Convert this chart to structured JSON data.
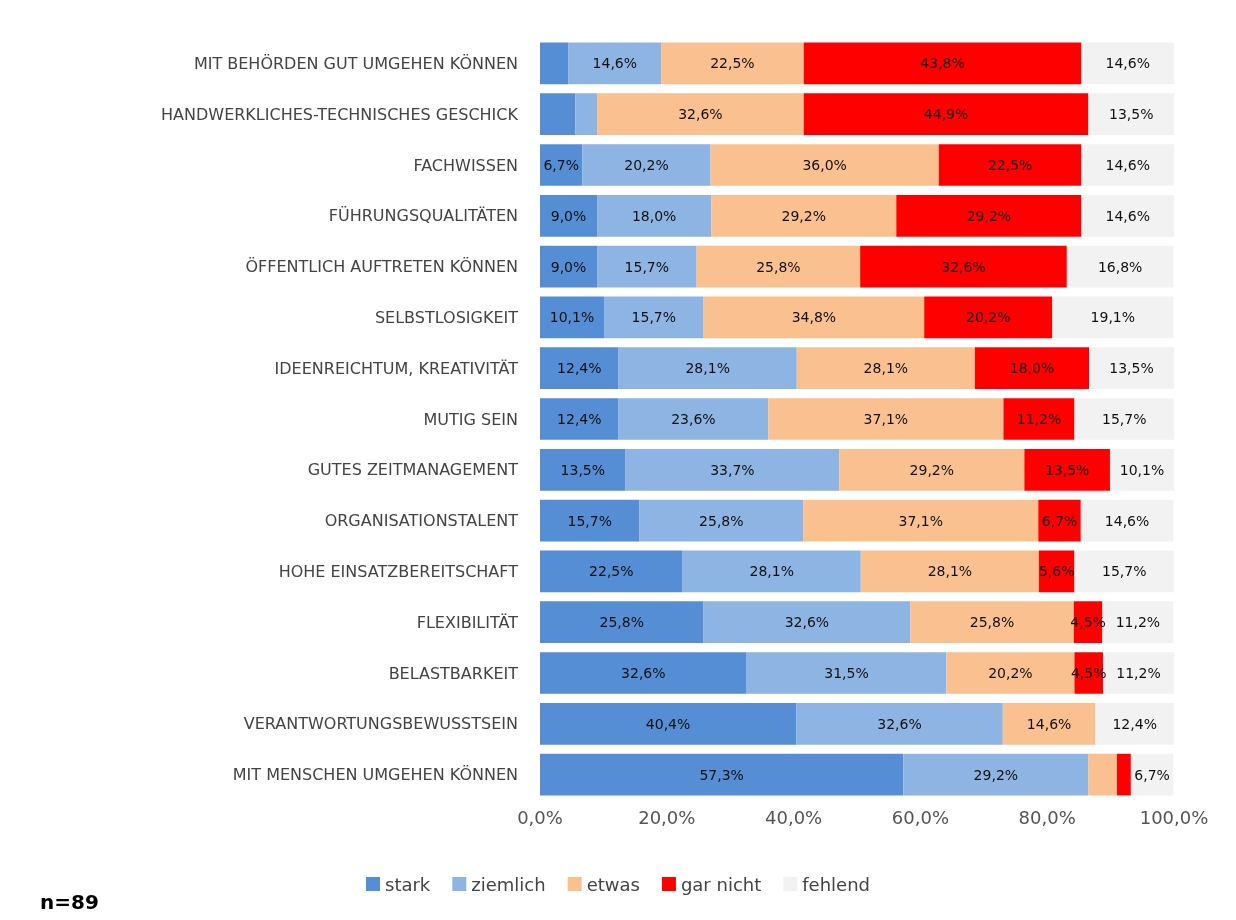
{
  "chart_data": {
    "type": "bar",
    "orientation": "horizontal",
    "stacked": true,
    "categories": [
      "MIT BEHÖRDEN GUT UMGEHEN KÖNNEN",
      "HANDWERKLICHES-TECHNISCHES GESCHICK",
      "FACHWISSEN",
      "FÜHRUNGSQUALITÄTEN",
      "ÖFFENTLICH AUFTRETEN KÖNNEN",
      "SELBSTLOSIGKEIT",
      "IDEENREICHTUM, KREATIVITÄT",
      "MUTIG SEIN",
      "GUTES ZEITMANAGEMENT",
      "ORGANISATIONSTALENT",
      "HOHE EINSATZBEREITSCHAFT",
      "FLEXIBILITÄT",
      "BELASTBARKEIT",
      "VERANTWORTUNGSBEWUSSTSEIN",
      "MIT MENSCHEN UMGEHEN KÖNNEN"
    ],
    "series": [
      {
        "name": "stark",
        "color": "#558ed5",
        "values": [
          4.5,
          5.6,
          6.7,
          9.0,
          9.0,
          10.1,
          12.4,
          12.4,
          13.5,
          15.7,
          22.5,
          25.8,
          32.6,
          40.4,
          57.3
        ],
        "value_labels": [
          null,
          null,
          "6,7%",
          "9,0%",
          "9,0%",
          "10,1%",
          "12,4%",
          "12,4%",
          "13,5%",
          "15,7%",
          "22,5%",
          "25,8%",
          "32,6%",
          "40,4%",
          "57,3%"
        ]
      },
      {
        "name": "ziemlich",
        "color": "#8eb4e3",
        "values": [
          14.6,
          3.4,
          20.2,
          18.0,
          15.7,
          15.7,
          28.1,
          23.6,
          33.7,
          25.8,
          28.1,
          32.6,
          31.5,
          32.6,
          29.2
        ],
        "value_labels": [
          "14,6%",
          null,
          "20,2%",
          "18,0%",
          "15,7%",
          "15,7%",
          "28,1%",
          "23,6%",
          "33,7%",
          "25,8%",
          "28,1%",
          "32,6%",
          "31,5%",
          "32,6%",
          "29,2%"
        ]
      },
      {
        "name": "etwas",
        "color": "#fac090",
        "values": [
          22.5,
          32.6,
          36.0,
          29.2,
          25.8,
          34.8,
          28.1,
          37.1,
          29.2,
          37.1,
          28.1,
          25.8,
          20.2,
          14.6,
          4.5
        ],
        "value_labels": [
          "22,5%",
          "32,6%",
          "36,0%",
          "29,2%",
          "25,8%",
          "34,8%",
          "28,1%",
          "37,1%",
          "29,2%",
          "37,1%",
          "28,1%",
          "25,8%",
          "20,2%",
          "14,6%",
          null
        ]
      },
      {
        "name": "gar nicht",
        "color": "#ff0000",
        "values": [
          43.8,
          44.9,
          22.5,
          29.2,
          32.6,
          20.2,
          18.0,
          11.2,
          13.5,
          6.7,
          5.6,
          4.5,
          4.5,
          null,
          2.2
        ],
        "value_labels": [
          "43,8%",
          "44,9%",
          "22,5%",
          "29,2%",
          "32,6%",
          "20,2%",
          "18,0%",
          "11,2%",
          "13,5%",
          "6,7%",
          "5,6%",
          "4,5%",
          "4,5%",
          null,
          null
        ]
      },
      {
        "name": "fehlend",
        "color": "#f2f2f2",
        "values": [
          14.6,
          13.5,
          14.6,
          14.6,
          16.8,
          19.1,
          13.5,
          15.7,
          10.1,
          14.6,
          15.7,
          11.2,
          11.2,
          12.4,
          6.7
        ],
        "value_labels": [
          "14,6%",
          "13,5%",
          "14,6%",
          "14,6%",
          "16,8%",
          "19,1%",
          "13,5%",
          "15,7%",
          "10,1%",
          "14,6%",
          "15,7%",
          "11,2%",
          "11,2%",
          "12,4%",
          "6,7%"
        ]
      }
    ],
    "xlim": [
      0,
      100
    ],
    "xticks": [
      {
        "value": 0,
        "label": "0,0%"
      },
      {
        "value": 20,
        "label": "20,0%"
      },
      {
        "value": 40,
        "label": "40,0%"
      },
      {
        "value": 60,
        "label": "60,0%"
      },
      {
        "value": 80,
        "label": "80,0%"
      },
      {
        "value": 100,
        "label": "100,0%"
      }
    ],
    "legend": "bottom",
    "annotations": [
      "n=89"
    ]
  }
}
